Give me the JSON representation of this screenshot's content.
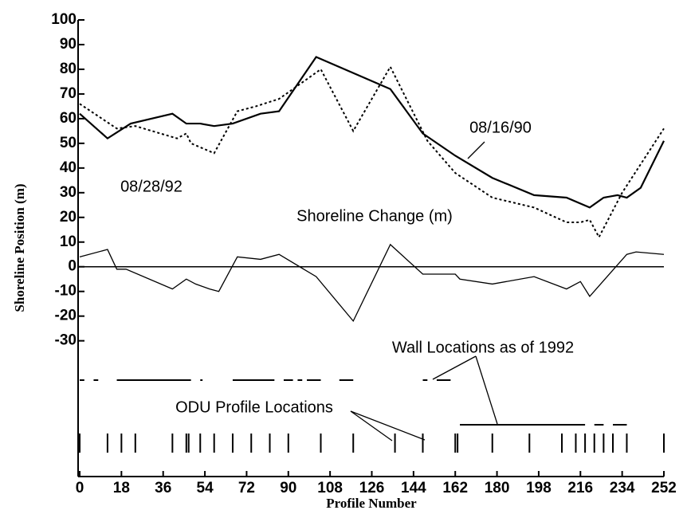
{
  "chart_data": {
    "type": "line",
    "x_label": "Profile Number",
    "y_label": "Shoreline Position (m)",
    "xlim": [
      0,
      252
    ],
    "xticks": [
      0,
      18,
      36,
      54,
      72,
      90,
      108,
      126,
      144,
      162,
      180,
      198,
      216,
      234,
      252
    ],
    "ylim": [
      -85,
      100
    ],
    "yticks": [
      100,
      90,
      80,
      70,
      60,
      50,
      40,
      30,
      20,
      10,
      0,
      -10,
      -20,
      -30
    ],
    "series": [
      {
        "name": "08/16/90",
        "color": "#000000",
        "style": "solid",
        "x": [
          0,
          12,
          22,
          40,
          46,
          52,
          58,
          66,
          78,
          86,
          102,
          134,
          148,
          162,
          178,
          196,
          210,
          220,
          226,
          232,
          236,
          242,
          252
        ],
        "values": [
          62,
          52,
          58,
          62,
          58,
          58,
          57,
          58,
          62,
          63,
          85,
          72,
          54,
          45,
          36,
          29,
          28,
          24,
          28,
          29,
          28,
          32,
          51
        ]
      },
      {
        "name": "08/28/92",
        "color": "#000000",
        "style": "dotted",
        "x": [
          0,
          16,
          24,
          42,
          46,
          48,
          58,
          68,
          76,
          86,
          104,
          118,
          134,
          150,
          162,
          178,
          196,
          210,
          216,
          220,
          224,
          234,
          252
        ],
        "values": [
          66,
          56,
          57,
          52,
          54,
          50,
          46,
          63,
          65,
          68,
          80,
          55,
          81,
          51,
          38,
          28,
          24,
          18,
          18,
          19,
          12,
          30,
          56
        ]
      },
      {
        "name": "Shoreline Change (m)",
        "color": "#000000",
        "style": "thin",
        "x": [
          0,
          12,
          16,
          20,
          40,
          46,
          50,
          56,
          60,
          68,
          78,
          86,
          102,
          118,
          134,
          148,
          162,
          164,
          178,
          196,
          210,
          216,
          220,
          236,
          240,
          252
        ],
        "values": [
          4,
          7,
          -1,
          -1,
          -9,
          -5,
          -7,
          -9,
          -10,
          4,
          3,
          5,
          -4,
          -22,
          9,
          -3,
          -3,
          -5,
          -7,
          -4,
          -9,
          -6,
          -12,
          5,
          6,
          5
        ]
      }
    ],
    "wall_label": "Wall Locations as of 1992",
    "walls": [
      [
        [
          0,
          2
        ],
        [
          6,
          8
        ],
        [
          16,
          48
        ],
        [
          52,
          53
        ],
        [
          66,
          84
        ],
        [
          88,
          92
        ],
        [
          94,
          96
        ],
        [
          98,
          104
        ],
        [
          112,
          118
        ],
        [
          148,
          150
        ],
        [
          154,
          160
        ]
      ],
      [
        [
          164,
          218
        ],
        [
          222,
          226
        ],
        [
          230,
          236
        ]
      ]
    ],
    "profile_label": "ODU Profile Locations",
    "profile_locations": [
      0,
      12,
      18,
      24,
      40,
      46,
      47,
      52,
      58,
      66,
      74,
      82,
      90,
      104,
      118,
      136,
      148,
      162,
      163,
      178,
      194,
      208,
      214,
      218,
      222,
      226,
      230,
      236,
      252
    ]
  }
}
